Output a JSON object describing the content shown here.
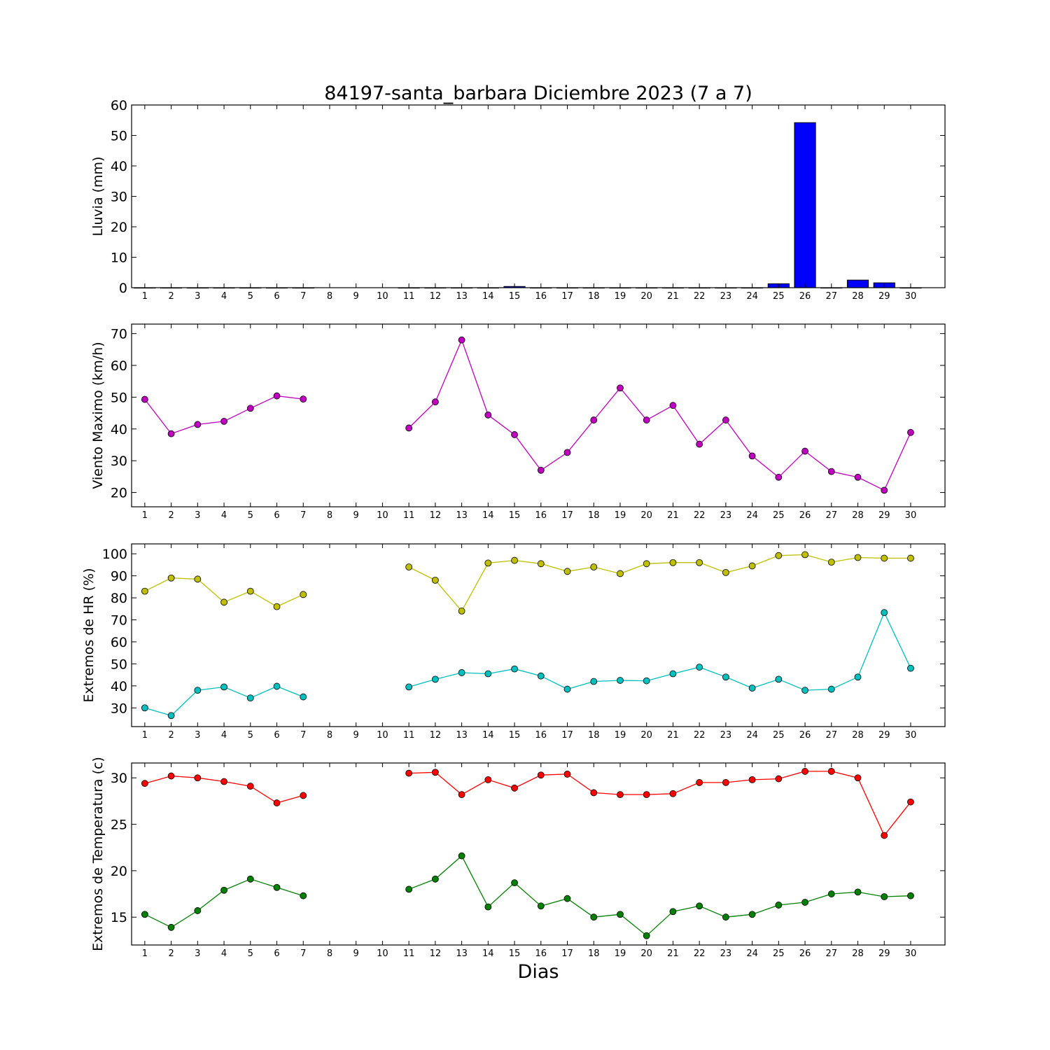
{
  "title": "84197-santa_barbara Diciembre 2023  (7 a 7)",
  "xlabel": "Dias",
  "chart_data": [
    {
      "type": "bar",
      "ylabel": "Lluvia (mm)",
      "ylim": [
        0,
        60
      ],
      "yticks": [
        0,
        10,
        20,
        30,
        40,
        50,
        60
      ],
      "categories": [
        "1",
        "2",
        "3",
        "4",
        "5",
        "6",
        "7",
        "8",
        "9",
        "10",
        "11",
        "12",
        "13",
        "14",
        "15",
        "16",
        "17",
        "18",
        "19",
        "20",
        "21",
        "22",
        "23",
        "24",
        "25",
        "26",
        "27",
        "28",
        "29",
        "30"
      ],
      "colors": {
        "bar": "#0000ff"
      },
      "series": [
        {
          "values": [
            0,
            0,
            0,
            0,
            0,
            0,
            0,
            null,
            null,
            null,
            0,
            0,
            0,
            0,
            0.4,
            0,
            0,
            0,
            0,
            0,
            0,
            0,
            0,
            0,
            1.3,
            54.2,
            0,
            2.5,
            1.6,
            0
          ]
        }
      ]
    },
    {
      "type": "line",
      "ylabel": "Viento Maximo (km/h)",
      "ylim": [
        15.5,
        73
      ],
      "yticks": [
        20,
        30,
        40,
        50,
        60,
        70
      ],
      "categories": [
        "1",
        "2",
        "3",
        "4",
        "5",
        "6",
        "7",
        "8",
        "9",
        "10",
        "11",
        "12",
        "13",
        "14",
        "15",
        "16",
        "17",
        "18",
        "19",
        "20",
        "21",
        "22",
        "23",
        "24",
        "25",
        "26",
        "27",
        "28",
        "29",
        "30"
      ],
      "colors": {
        "line": "#bf00bf"
      },
      "series": [
        {
          "values": [
            49.3,
            38.5,
            41.4,
            42.4,
            46.5,
            50.4,
            49.4,
            null,
            null,
            null,
            40.3,
            48.5,
            68,
            44.4,
            38.2,
            27,
            32.6,
            42.8,
            52.9,
            42.8,
            47.4,
            35.2,
            42.8,
            31.5,
            24.8,
            33,
            26.6,
            24.8,
            20.7,
            38.9
          ]
        }
      ]
    },
    {
      "type": "line",
      "ylabel": "Extremos de HR (%)",
      "ylim": [
        21.5,
        104.5
      ],
      "yticks": [
        30,
        40,
        50,
        60,
        70,
        80,
        90,
        100
      ],
      "categories": [
        "1",
        "2",
        "3",
        "4",
        "5",
        "6",
        "7",
        "8",
        "9",
        "10",
        "11",
        "12",
        "13",
        "14",
        "15",
        "16",
        "17",
        "18",
        "19",
        "20",
        "21",
        "22",
        "23",
        "24",
        "25",
        "26",
        "27",
        "28",
        "29",
        "30"
      ],
      "colors": {
        "max": "#bfbf00",
        "min": "#00bfbf"
      },
      "series": [
        {
          "color": "#bfbf00",
          "values": [
            83,
            89,
            88.5,
            78,
            83,
            76,
            81.5,
            null,
            null,
            null,
            94,
            88,
            74,
            95.8,
            97,
            95.5,
            92,
            94,
            91,
            95.5,
            96,
            96,
            91.5,
            94.5,
            99.2,
            99.6,
            96.2,
            98.3,
            98,
            98
          ]
        },
        {
          "color": "#00bfbf",
          "values": [
            30,
            26.5,
            38,
            39.5,
            34.5,
            39.8,
            35,
            null,
            null,
            null,
            39.5,
            43,
            46,
            45.5,
            47.7,
            44.5,
            38.5,
            42,
            42.5,
            42.3,
            45.5,
            48.5,
            44,
            39,
            43,
            38,
            38.5,
            44,
            73.3,
            48
          ]
        }
      ]
    },
    {
      "type": "line",
      "ylabel": "Extremos de Temperatura (c)",
      "ylim": [
        12,
        31.6
      ],
      "yticks": [
        15,
        20,
        25,
        30
      ],
      "categories": [
        "1",
        "2",
        "3",
        "4",
        "5",
        "6",
        "7",
        "8",
        "9",
        "10",
        "11",
        "12",
        "13",
        "14",
        "15",
        "16",
        "17",
        "18",
        "19",
        "20",
        "21",
        "22",
        "23",
        "24",
        "25",
        "26",
        "27",
        "28",
        "29",
        "30"
      ],
      "colors": {
        "max": "#ff0000",
        "min": "#008000"
      },
      "series": [
        {
          "color": "#ff0000",
          "values": [
            29.4,
            30.2,
            30,
            29.6,
            29.1,
            27.3,
            28.1,
            null,
            null,
            null,
            30.5,
            30.6,
            28.2,
            29.8,
            28.9,
            30.3,
            30.4,
            28.4,
            28.2,
            28.2,
            28.3,
            29.5,
            29.5,
            29.8,
            29.9,
            30.7,
            30.7,
            30,
            23.8,
            27.4
          ]
        },
        {
          "color": "#008000",
          "values": [
            15.3,
            13.9,
            15.7,
            17.9,
            19.1,
            18.2,
            17.3,
            null,
            null,
            null,
            18,
            19.1,
            21.6,
            16.1,
            18.7,
            16.2,
            17,
            15,
            15.3,
            13,
            15.6,
            16.2,
            15,
            15.3,
            16.3,
            16.6,
            17.5,
            17.7,
            17.2,
            17.3
          ]
        }
      ]
    }
  ]
}
